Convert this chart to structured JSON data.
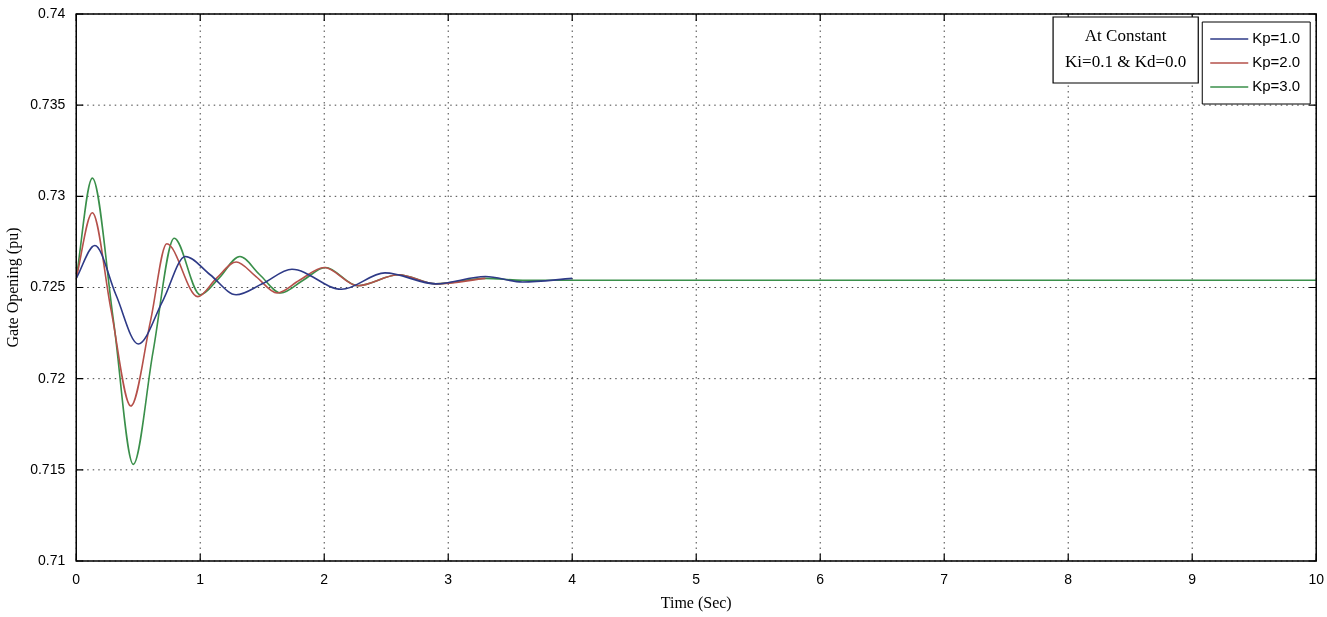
{
  "chart_data": {
    "type": "line",
    "xlabel": "Time (Sec)",
    "ylabel": "Gate Opening (pu)",
    "xlim": [
      0,
      10
    ],
    "xticks": [
      0,
      1,
      2,
      3,
      4,
      5,
      6,
      7,
      8,
      9,
      10
    ],
    "ylim": [
      0.71,
      0.74
    ],
    "yticks": [
      0.71,
      0.715,
      0.72,
      0.725,
      0.73,
      0.735,
      0.74
    ],
    "grid": true,
    "legend": "top right",
    "marker": "none",
    "line_style": "solid",
    "annotations": [
      "At Constant",
      "Ki=0.1 & Kd=0.0"
    ],
    "series": [
      {
        "name": "Kp=1.0",
        "color": "#2e3a87",
        "x": [
          0,
          0.15,
          0.32,
          0.5,
          0.7,
          0.88,
          1.08,
          1.29,
          1.5,
          1.74,
          2.14,
          2.49,
          2.9,
          3.3,
          3.6,
          4.0
        ],
        "values": [
          0.7255,
          0.7273,
          0.7246,
          0.7219,
          0.7243,
          0.7267,
          0.7257,
          0.7246,
          0.7252,
          0.726,
          0.7249,
          0.7258,
          0.7252,
          0.7256,
          0.7253,
          0.7255
        ]
      },
      {
        "name": "Kp=2.0",
        "color": "#b5504a",
        "x": [
          0,
          0.13,
          0.28,
          0.44,
          0.6,
          0.73,
          0.98,
          1.13,
          1.29,
          1.45,
          1.62,
          1.8,
          2.0,
          2.27,
          2.6,
          2.9,
          3.3
        ],
        "values": [
          0.7255,
          0.7291,
          0.7238,
          0.7185,
          0.7232,
          0.7274,
          0.7245,
          0.7255,
          0.7264,
          0.7256,
          0.7247,
          0.7254,
          0.7261,
          0.7251,
          0.7257,
          0.7252,
          0.7255
        ]
      },
      {
        "name": "Kp=3.0",
        "color": "#3a8f4a",
        "x": [
          0,
          0.13,
          0.3,
          0.46,
          0.62,
          0.79,
          1.0,
          1.15,
          1.32,
          1.48,
          1.65,
          1.83,
          2.01,
          2.27,
          2.6,
          2.9,
          3.3,
          3.6,
          10
        ],
        "values": [
          0.7255,
          0.731,
          0.7232,
          0.7153,
          0.7215,
          0.7277,
          0.7246,
          0.7255,
          0.7267,
          0.7257,
          0.7247,
          0.7254,
          0.7261,
          0.7251,
          0.7257,
          0.7252,
          0.7255,
          0.7254,
          0.7254
        ]
      }
    ]
  }
}
